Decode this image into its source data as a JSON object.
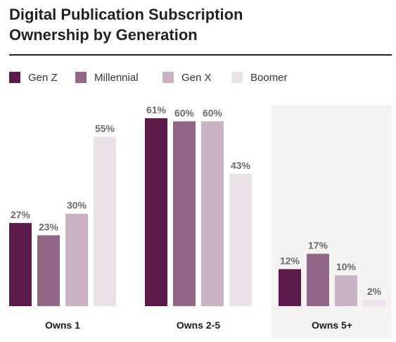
{
  "title_line1": "Digital Publication Subscription",
  "title_line2": "Ownership by Generation",
  "chart_data": {
    "type": "bar",
    "categories": [
      "Owns 1",
      "Owns 2-5",
      "Owns 5+"
    ],
    "series": [
      {
        "name": "Gen Z",
        "values": [
          27,
          61,
          12
        ],
        "labels": [
          "27%",
          "61%",
          "12%"
        ],
        "color": "#5c1a4a"
      },
      {
        "name": "Millennial",
        "values": [
          23,
          60,
          17
        ],
        "labels": [
          "23%",
          "60%",
          "17%"
        ],
        "color": "#936688"
      },
      {
        "name": "Gen X",
        "values": [
          30,
          60,
          10
        ],
        "labels": [
          "30%",
          "60%",
          "10%"
        ],
        "color": "#c8b2c3"
      },
      {
        "name": "Boomer",
        "values": [
          55,
          43,
          2
        ],
        "labels": [
          "55%",
          "43%",
          "2%"
        ],
        "color": "#ece3ea"
      }
    ],
    "ylim": [
      0,
      61
    ],
    "grid": false,
    "legend": "top-left",
    "highlight_category_background": "#f4f3f2"
  }
}
